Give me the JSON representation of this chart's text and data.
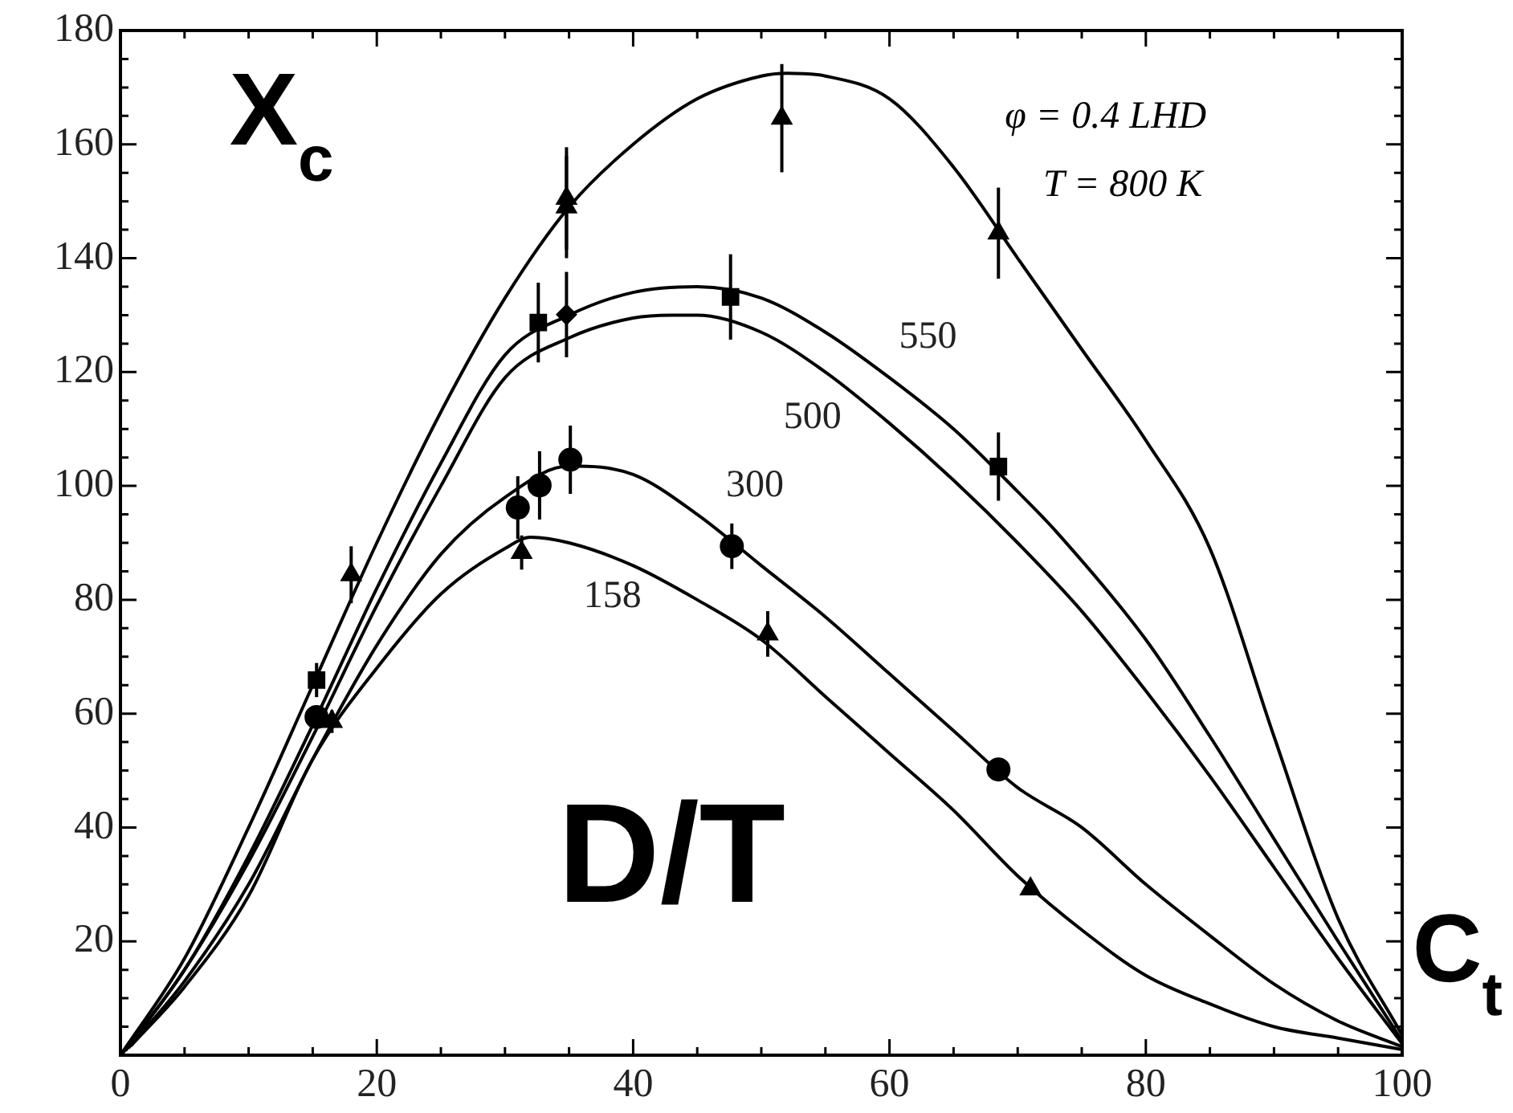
{
  "chart_data": {
    "type": "line",
    "xlim": [
      0,
      100
    ],
    "ylim": [
      0,
      180
    ],
    "xticks": [
      0,
      {
        "value": 5,
        "label": null
      },
      {
        "value": 10,
        "label": null
      },
      {
        "value": 15,
        "label": null
      },
      20,
      {
        "value": 25,
        "label": null
      },
      {
        "value": 30,
        "label": null
      },
      {
        "value": 35,
        "label": null
      },
      40,
      {
        "value": 45,
        "label": null
      },
      {
        "value": 50,
        "label": null
      },
      {
        "value": 55,
        "label": null
      },
      60,
      {
        "value": 65,
        "label": null
      },
      {
        "value": 70,
        "label": null
      },
      {
        "value": 75,
        "label": null
      },
      80,
      {
        "value": 85,
        "label": null
      },
      {
        "value": 90,
        "label": null
      },
      {
        "value": 95,
        "label": null
      },
      100
    ],
    "yticks": [
      {
        "value": 0,
        "label": null
      },
      {
        "value": 5,
        "label": null
      },
      {
        "value": 10,
        "label": null
      },
      {
        "value": 15,
        "label": null
      },
      20,
      {
        "value": 25,
        "label": null
      },
      {
        "value": 30,
        "label": null
      },
      {
        "value": 35,
        "label": null
      },
      40,
      {
        "value": 45,
        "label": null
      },
      {
        "value": 50,
        "label": null
      },
      {
        "value": 55,
        "label": null
      },
      60,
      {
        "value": 65,
        "label": null
      },
      {
        "value": 70,
        "label": null
      },
      {
        "value": 75,
        "label": null
      },
      80,
      {
        "value": 85,
        "label": null
      },
      {
        "value": 90,
        "label": null
      },
      {
        "value": 95,
        "label": null
      },
      100,
      {
        "value": 105,
        "label": null
      },
      {
        "value": 110,
        "label": null
      },
      {
        "value": 115,
        "label": null
      },
      120,
      {
        "value": 125,
        "label": null
      },
      {
        "value": 130,
        "label": null
      },
      {
        "value": 135,
        "label": null
      },
      140,
      {
        "value": 145,
        "label": null
      },
      {
        "value": 150,
        "label": null
      },
      {
        "value": 155,
        "label": null
      },
      160,
      {
        "value": 165,
        "label": null
      },
      {
        "value": 170,
        "label": null
      },
      {
        "value": 175,
        "label": null
      },
      180
    ],
    "grid": false,
    "legend": false,
    "line_style": "solid",
    "annotations": [
      "φ = 0.4 LHD",
      "T = 800 K",
      "X$_{c}$",
      "D/T",
      "C$_{t}$"
    ],
    "series": [
      {
        "marker": "none",
        "color": "#000000",
        "x": [
          0,
          5,
          10,
          15,
          20,
          25,
          30,
          35,
          40,
          45,
          50,
          52,
          55,
          60,
          65,
          70,
          75,
          80,
          85,
          90,
          95,
          100
        ],
        "values": [
          0,
          17,
          40,
          65,
          90,
          113,
          133,
          149,
          160,
          168,
          172,
          172.5,
          172,
          168,
          156,
          140,
          124,
          108,
          89,
          56,
          24,
          3.5
        ]
      },
      {
        "marker": "none",
        "color": "#000000",
        "name": "550",
        "x": [
          0.2,
          5,
          10,
          15,
          20,
          25,
          30,
          35,
          40,
          45,
          50,
          55,
          60,
          65,
          70,
          73,
          80,
          85,
          90,
          95,
          100
        ],
        "values": [
          0.4,
          15,
          35,
          58,
          82,
          104,
          123,
          130,
          134,
          135,
          133,
          127,
          119,
          110,
          99,
          92,
          73,
          56,
          38,
          20,
          2.5
        ]
      },
      {
        "marker": "none",
        "color": "#000000",
        "name": "500",
        "x": [
          0.4,
          5,
          10,
          15,
          20,
          25,
          30,
          35,
          40,
          43,
          45,
          50,
          55,
          60,
          65,
          70,
          75,
          80,
          85,
          90,
          95,
          100
        ],
        "values": [
          0.8,
          15,
          34,
          56,
          79,
          100,
          119,
          126,
          129.5,
          130,
          130,
          127,
          120,
          111,
          101,
          90,
          78,
          64,
          49,
          33,
          17,
          2
        ]
      },
      {
        "marker": "none",
        "color": "#000000",
        "name": "300",
        "x": [
          0.6,
          5,
          10,
          15,
          20,
          25,
          30,
          35,
          40,
          45,
          50,
          55,
          60,
          65,
          70,
          75,
          80,
          85,
          90,
          95,
          100
        ],
        "values": [
          1.2,
          13,
          30,
          52,
          72,
          88,
          98,
          103.5,
          102,
          95,
          86,
          77,
          67,
          57,
          47,
          40,
          30,
          21,
          12.5,
          6,
          1.5
        ]
      },
      {
        "marker": "none",
        "color": "#000000",
        "name": "158",
        "x": [
          0.8,
          5,
          10,
          15,
          20,
          25,
          30,
          32,
          35,
          40,
          45,
          50,
          55,
          60,
          65,
          70,
          75,
          80,
          85,
          90,
          95,
          100
        ],
        "values": [
          1.6,
          12,
          28,
          52,
          68,
          81,
          89,
          91,
          90,
          86,
          80,
          73,
          63,
          53,
          43,
          31.5,
          22,
          14,
          9,
          5,
          3,
          1
        ]
      },
      {
        "type": "scatter",
        "marker": "triangle",
        "color": "#000000",
        "x": [
          18,
          34.8,
          34.8,
          51.6,
          68.5
        ],
        "values": [
          84.4,
          150.5,
          149,
          164.6,
          144.4
        ],
        "errors": [
          5,
          9,
          9,
          9.5,
          8
        ]
      },
      {
        "type": "scatter",
        "marker": "square",
        "color": "#000000",
        "x": [
          15.3,
          32.6,
          47.6,
          68.5
        ],
        "values": [
          65.9,
          128.7,
          133.2,
          103.4
        ],
        "errors": [
          3,
          7,
          7.5,
          6
        ]
      },
      {
        "type": "scatter",
        "marker": "diamond",
        "color": "#000000",
        "x": [
          34.8
        ],
        "values": [
          130.1
        ],
        "errors": [
          7.5
        ]
      },
      {
        "type": "scatter",
        "marker": "circle",
        "color": "#000000",
        "x": [
          15.3,
          31,
          32.7,
          35.1,
          47.7,
          68.5
        ],
        "values": [
          59.4,
          96.2,
          100.1,
          104.6,
          89.4,
          50.2
        ],
        "errors": [
          2,
          5.5,
          6,
          6,
          4,
          2
        ]
      },
      {
        "type": "scatter",
        "marker": "triangle",
        "color": "#000000",
        "x": [
          16.5,
          31.3,
          50.5,
          71
        ],
        "values": [
          58.6,
          88.3,
          74,
          29.2
        ],
        "errors": [
          2,
          3,
          4,
          null
        ]
      }
    ]
  }
}
